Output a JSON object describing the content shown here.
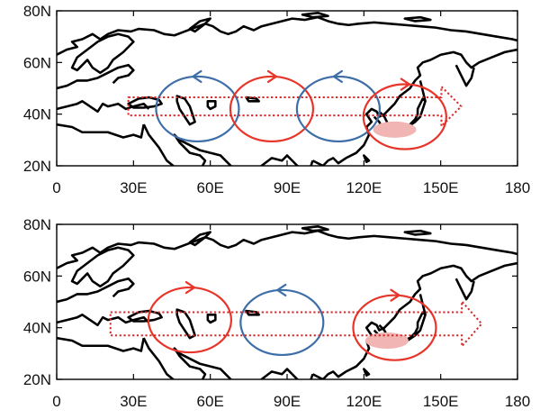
{
  "colors": {
    "cyclonic": "#3d6ea8",
    "anticyclonic": "#e8352a",
    "arrow": "#d42a2a",
    "rain_band": "#f1b6b4"
  },
  "panels": [
    {
      "y_ticks": [
        "80N",
        "60N",
        "40N",
        "20N"
      ],
      "x_ticks": [
        "0",
        "30E",
        "60E",
        "90E",
        "120E",
        "150E",
        "180"
      ],
      "circulations": [
        {
          "type": "cyclonic",
          "lon": 55,
          "lat": 42
        },
        {
          "type": "anticyclonic",
          "lon": 84,
          "lat": 42
        },
        {
          "type": "cyclonic",
          "lon": 110,
          "lat": 42
        },
        {
          "type": "anticyclonic",
          "lon": 136,
          "lat": 39
        }
      ],
      "rain_band": {
        "lon": 132,
        "lat": 34
      },
      "wave_arrow": {
        "lon_start": 28,
        "lon_end": 158,
        "lat_top": 46.5,
        "lat_bottom": 39.5
      }
    },
    {
      "y_ticks": [
        "80N",
        "60N",
        "40N",
        "20N"
      ],
      "x_ticks": [
        "0",
        "30E",
        "60E",
        "90E",
        "120E",
        "150E",
        "180"
      ],
      "circulations": [
        {
          "type": "anticyclonic",
          "lon": 52,
          "lat": 43
        },
        {
          "type": "cyclonic",
          "lon": 88,
          "lat": 42
        },
        {
          "type": "anticyclonic",
          "lon": 132,
          "lat": 40
        }
      ],
      "rain_band": {
        "lon": 129,
        "lat": 35
      },
      "wave_arrow": {
        "lon_start": 21,
        "lon_end": 166,
        "lat_top": 46,
        "lat_bottom": 37
      }
    }
  ]
}
